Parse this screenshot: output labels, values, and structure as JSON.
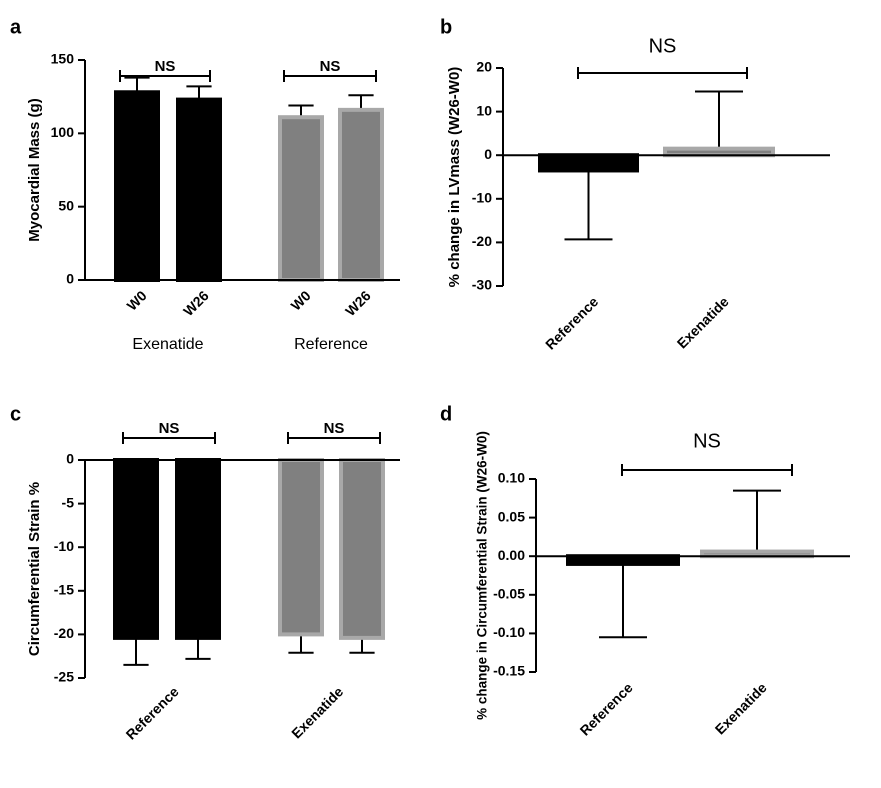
{
  "chart_data": [
    {
      "type": "bar",
      "panel": "a",
      "ylabel": "Myocardial Mass (g)",
      "categories": [
        "W0",
        "W26",
        "W0",
        "W26"
      ],
      "groups": [
        "Exenatide",
        "Reference"
      ],
      "values": [
        128,
        123,
        111,
        116
      ],
      "errors": [
        10,
        9,
        8,
        10
      ],
      "colors": [
        "#000000",
        "#000000",
        "#808080",
        "#808080"
      ],
      "edge_colors": [
        "#000000",
        "#000000",
        "#a8a8a8",
        "#a8a8a8"
      ],
      "ylim": [
        0,
        150
      ],
      "yticks": [
        0,
        50,
        100,
        150
      ],
      "annotations": [
        "NS",
        "NS"
      ]
    },
    {
      "type": "bar",
      "panel": "b",
      "ylabel": "% change in LVmass (W26-W0)",
      "categories": [
        "Reference",
        "Exenatide"
      ],
      "values": [
        -3.5,
        1.5
      ],
      "errors": [
        15.8,
        13.1
      ],
      "colors": [
        "#000000",
        "#808080"
      ],
      "edge_colors": [
        "#000000",
        "#a8a8a8"
      ],
      "ylim": [
        -30,
        20
      ],
      "yticks": [
        -30,
        -20,
        -10,
        0,
        10,
        20
      ],
      "annotations": [
        "NS"
      ]
    },
    {
      "type": "bar",
      "panel": "c",
      "ylabel": "Circumferential Strain %",
      "categories": [
        null,
        null,
        null,
        null
      ],
      "groups": [
        "Reference",
        "Exenatide"
      ],
      "values": [
        -20.4,
        -20.4,
        -20.0,
        -20.4
      ],
      "errors": [
        3.1,
        2.4,
        2.1,
        1.7
      ],
      "colors": [
        "#000000",
        "#000000",
        "#808080",
        "#808080"
      ],
      "edge_colors": [
        "#000000",
        "#000000",
        "#a8a8a8",
        "#a8a8a8"
      ],
      "ylim": [
        -25,
        0
      ],
      "yticks": [
        -25,
        -20,
        -15,
        -10,
        -5,
        0
      ],
      "annotations": [
        "NS",
        "NS"
      ]
    },
    {
      "type": "bar",
      "panel": "d",
      "ylabel": "% change in Circumferential Strain (W26-W0)",
      "categories": [
        "Reference",
        "Exenatide"
      ],
      "values": [
        -0.01,
        0.006
      ],
      "errors": [
        0.095,
        0.079
      ],
      "colors": [
        "#000000",
        "#808080"
      ],
      "edge_colors": [
        "#000000",
        "#a8a8a8"
      ],
      "ylim": [
        -0.15,
        0.1
      ],
      "yticks": [
        {
          "value": -0.15,
          "label": "-0.15"
        },
        {
          "value": -0.1,
          "label": "-0.10"
        },
        {
          "value": -0.05,
          "label": "-0.05"
        },
        {
          "value": 0,
          "label": "0.00"
        },
        {
          "value": 0.05,
          "label": "0.05"
        },
        {
          "value": 0.1,
          "label": "0.10"
        }
      ],
      "annotations": [
        "NS"
      ]
    }
  ]
}
